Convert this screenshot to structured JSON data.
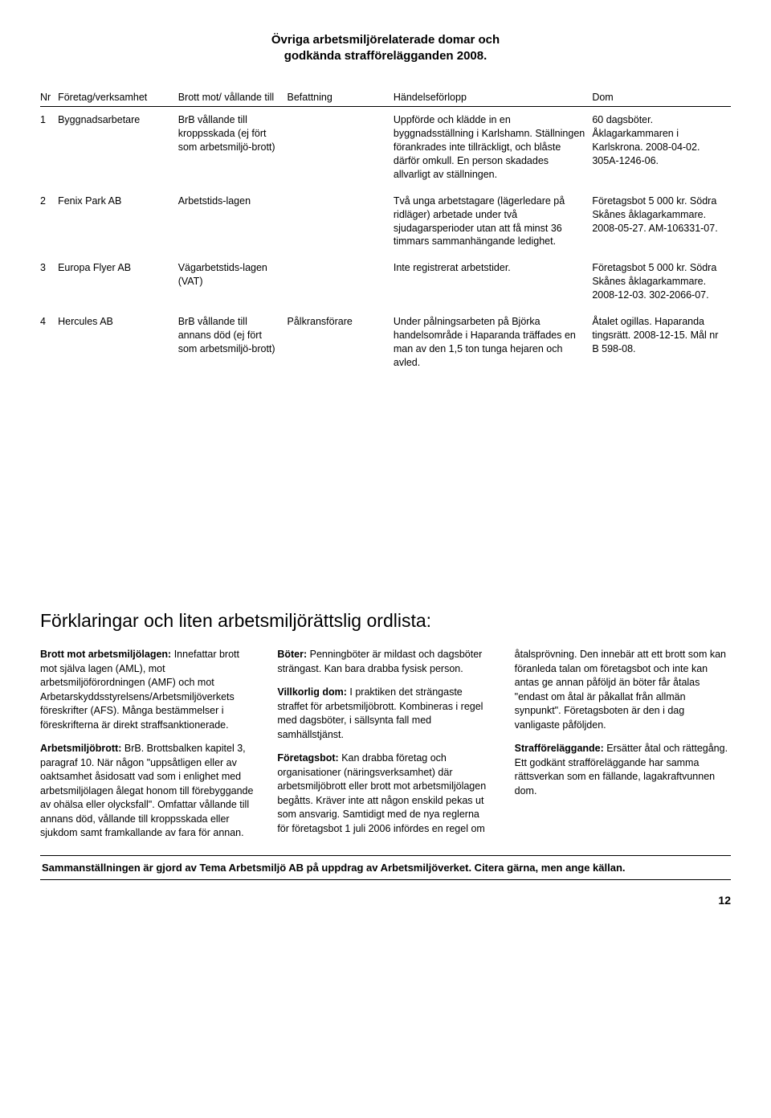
{
  "title_line1": "Övriga arbetsmiljörelaterade domar och",
  "title_line2": "godkända strafförelägganden 2008.",
  "headers": {
    "nr": "Nr",
    "corp": "Företag/verksamhet",
    "law": "Brott mot/ vållande till",
    "pos": "Befattning",
    "evt": "Händelseförlopp",
    "dom": "Dom"
  },
  "rows": [
    {
      "nr": "1",
      "corp": "Byggnadsarbetare",
      "law": "BrB vållande till kroppsskada (ej fört som arbetsmiljö-brott)",
      "pos": "",
      "evt": "Uppförde och klädde in en byggnadsställning i Karlshamn. Ställningen förankrades inte tillräckligt, och blåste därför omkull. En person skadades allvarligt av ställningen.",
      "dom": "60 dagsböter. Åklagarkammaren i Karlskrona. 2008-04-02. 305A-1246-06."
    },
    {
      "nr": "2",
      "corp": "Fenix Park AB",
      "law": "Arbetstids-lagen",
      "pos": "",
      "evt": "Två unga arbetstagare (lägerledare på ridläger) arbetade under två sjudagarsperioder utan att få minst 36 timmars sammanhängande ledighet.",
      "dom": "Företagsbot 5 000 kr. Södra Skånes åklagarkammare. 2008-05-27. AM-106331-07."
    },
    {
      "nr": "3",
      "corp": "Europa Flyer AB",
      "law": "Vägarbetstids-lagen (VAT)",
      "pos": "",
      "evt": "Inte registrerat arbetstider.",
      "dom": "Företagsbot 5 000 kr. Södra Skånes åklagarkammare. 2008-12-03. 302-2066-07."
    },
    {
      "nr": "4",
      "corp": "Hercules AB",
      "law": "BrB vållande till annans död (ej fört som arbetsmiljö-brott)",
      "pos": "Pålkransförare",
      "evt": "Under pålningsarbeten på Björka handelsområde i Haparanda träffades en man av den 1,5 ton tunga hejaren och avled.",
      "dom": "Åtalet ogillas. Haparanda tingsrätt. 2008-12-15. Mål nr B 598-08."
    }
  ],
  "glossary_title": "Förklaringar och liten arbetsmiljörättslig ordlista:",
  "glossary": [
    {
      "term": "Brott mot arbetsmiljölagen:",
      "text": " Innefattar brott mot själva lagen (AML), mot arbetsmiljöförordningen (AMF) och mot Arbetarskyddsstyrelsens/Arbetsmiljöverkets föreskrifter (AFS). Många bestämmelser i föreskrifterna är direkt straffsanktionerade."
    },
    {
      "term": "Arbetsmiljöbrott:",
      "text": " BrB. Brottsbalken kapitel 3, paragraf 10. När någon \"uppsåtligen eller av oaktsamhet åsidosatt vad som i enlighet med arbetsmiljölagen ålegat honom till förebyggande av ohälsa eller olycksfall\". Omfattar vållande till annans död, vållande till kroppsskada eller sjukdom samt framkallande av fara för annan."
    },
    {
      "term": "Böter:",
      "text": " Penningböter är mildast och dagsböter strängast. Kan bara drabba fysisk person."
    },
    {
      "term": "Villkorlig dom:",
      "text": " I praktiken det strängaste straffet för arbetsmiljöbrott. Kombineras i regel med dagsböter, i sällsynta fall med samhällstjänst."
    },
    {
      "term": "Företagsbot:",
      "text": " Kan drabba företag och organisationer (näringsverksamhet) där arbetsmiljöbrott eller brott mot arbetsmiljölagen begåtts. Kräver inte att någon enskild pekas ut som ansvarig. Samtidigt med de nya reglerna för företagsbot 1 juli 2006 infördes en regel om åtalsprövning. Den innebär att ett brott som kan föranleda talan om företagsbot och inte kan antas ge annan påföljd än böter får åtalas \"endast om åtal är påkallat från allmän synpunkt\". Företagsboten är den i dag vanligaste påföljden."
    },
    {
      "term": "Strafföreläggande:",
      "text": " Ersätter åtal och rättegång. Ett godkänt strafföreläggande har samma rättsverkan som en fällande, lagakraftvunnen dom."
    }
  ],
  "footer": "Sammanställningen är gjord av Tema Arbetsmiljö AB på uppdrag av Arbetsmiljöverket. Citera gärna, men ange källan.",
  "pagenum": "12"
}
